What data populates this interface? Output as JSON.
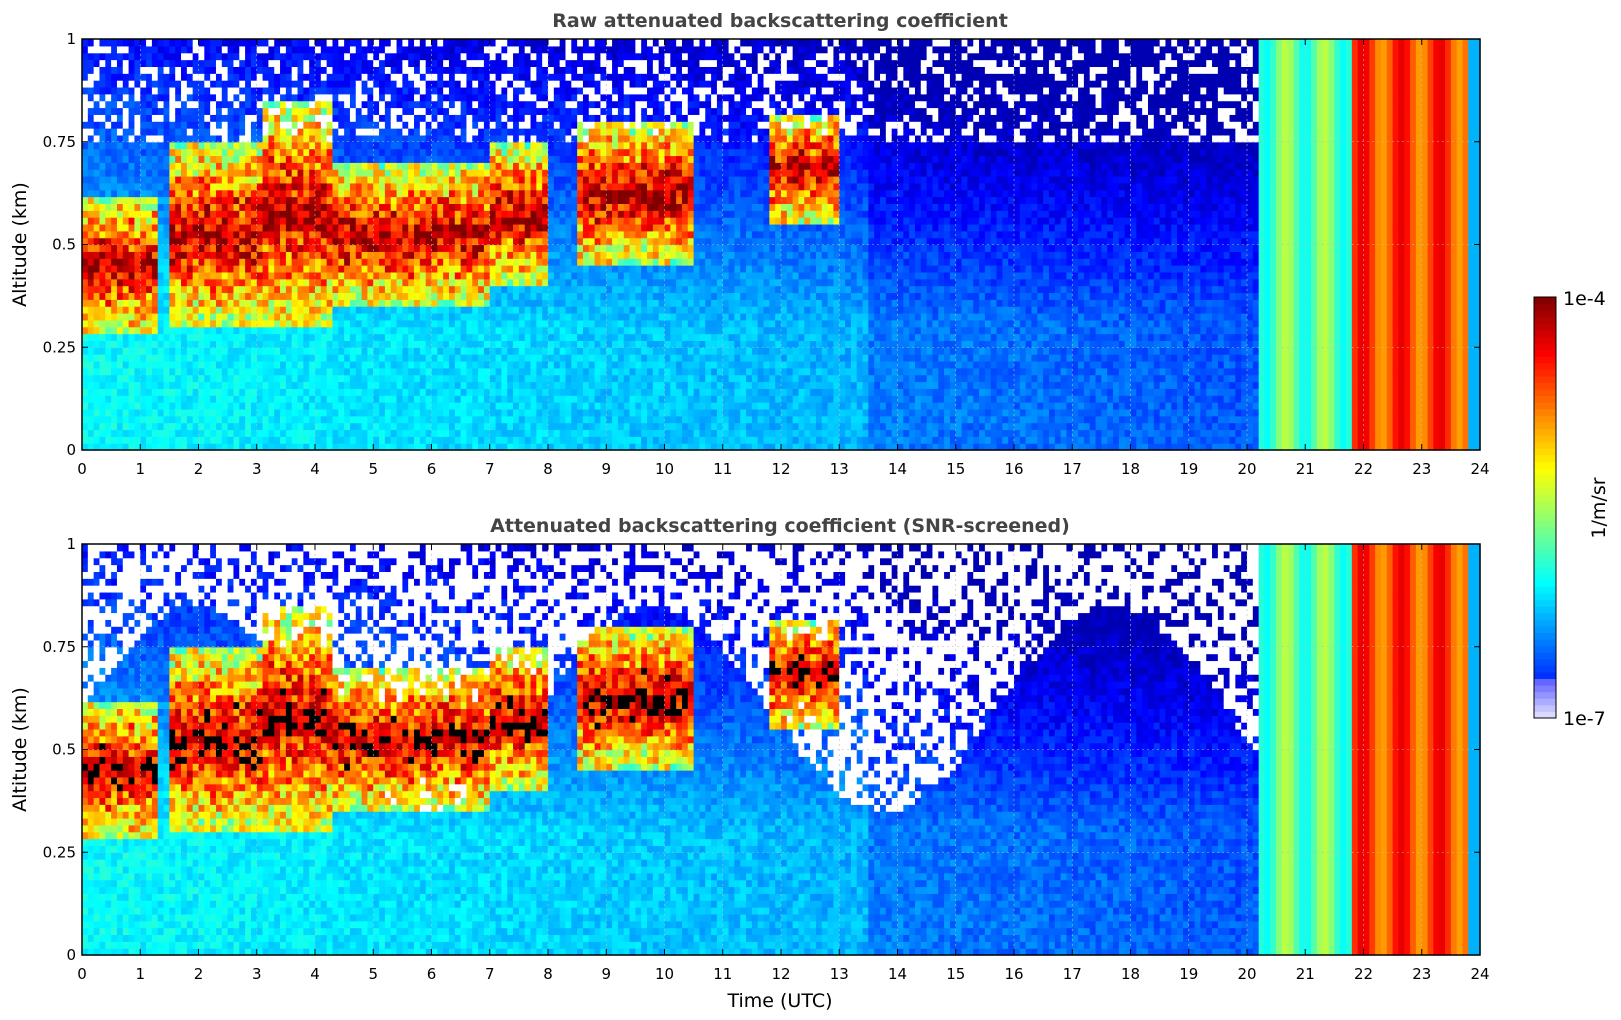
{
  "chart_data": [
    {
      "type": "heatmap",
      "title": "Raw attenuated backscattering coefficient",
      "xlabel": "",
      "ylabel": "Altitude (km)",
      "xlim": [
        0,
        24
      ],
      "ylim": [
        0,
        1
      ],
      "x_ticks": [
        "0",
        "1",
        "2",
        "3",
        "4",
        "5",
        "6",
        "7",
        "8",
        "9",
        "10",
        "11",
        "12",
        "13",
        "14",
        "15",
        "16",
        "17",
        "18",
        "19",
        "20",
        "21",
        "22",
        "23",
        "24"
      ],
      "y_ticks": [
        "0",
        "0.25",
        "0.5",
        "0.75",
        "1"
      ],
      "grid": true,
      "screened": false,
      "cloud_layers": [
        {
          "x": [
            0,
            1.3
          ],
          "alt": [
            0.28,
            0.62
          ]
        },
        {
          "x": [
            1.5,
            3.1
          ],
          "alt": [
            0.3,
            0.75
          ]
        },
        {
          "x": [
            3.1,
            4.3
          ],
          "alt": [
            0.3,
            0.85
          ]
        },
        {
          "x": [
            4.3,
            7.0
          ],
          "alt": [
            0.35,
            0.7
          ]
        },
        {
          "x": [
            7.0,
            8.0
          ],
          "alt": [
            0.4,
            0.75
          ]
        },
        {
          "x": [
            8.5,
            10.5
          ],
          "alt": [
            0.45,
            0.8
          ]
        },
        {
          "x": [
            11.8,
            13.0
          ],
          "alt": [
            0.55,
            0.82
          ]
        }
      ],
      "notes": "High backscatter bands after 20 UTC; strongest (red) between ~21.8 and 23.8 UTC"
    },
    {
      "type": "heatmap",
      "title": "Attenuated backscattering coefficient (SNR-screened)",
      "xlabel": "Time (UTC)",
      "ylabel": "Altitude (km)",
      "xlim": [
        0,
        24
      ],
      "ylim": [
        0,
        1
      ],
      "x_ticks": [
        "0",
        "1",
        "2",
        "3",
        "4",
        "5",
        "6",
        "7",
        "8",
        "9",
        "10",
        "11",
        "12",
        "13",
        "14",
        "15",
        "16",
        "17",
        "18",
        "19",
        "20",
        "21",
        "22",
        "23",
        "24"
      ],
      "y_ticks": [
        "0",
        "0.25",
        "0.5",
        "0.75",
        "1"
      ],
      "grid": true,
      "screened": true,
      "cloud_layers": [
        {
          "x": [
            0,
            1.3
          ],
          "alt": [
            0.28,
            0.62
          ]
        },
        {
          "x": [
            1.5,
            3.1
          ],
          "alt": [
            0.3,
            0.75
          ]
        },
        {
          "x": [
            3.1,
            4.3
          ],
          "alt": [
            0.3,
            0.85
          ]
        },
        {
          "x": [
            4.3,
            7.0
          ],
          "alt": [
            0.35,
            0.7
          ]
        },
        {
          "x": [
            7.0,
            8.0
          ],
          "alt": [
            0.4,
            0.75
          ]
        },
        {
          "x": [
            8.5,
            10.5
          ],
          "alt": [
            0.45,
            0.8
          ]
        },
        {
          "x": [
            11.8,
            13.0
          ],
          "alt": [
            0.55,
            0.82
          ]
        }
      ],
      "notes": "Low-SNR regions removed (white); saturated cloud cores shown in black"
    }
  ],
  "colorbar": {
    "unit_label": "1/m/sr",
    "max_label": "1e-4",
    "min_label": "1e-7",
    "scale": "log",
    "range": [
      1e-07,
      0.0001
    ]
  }
}
